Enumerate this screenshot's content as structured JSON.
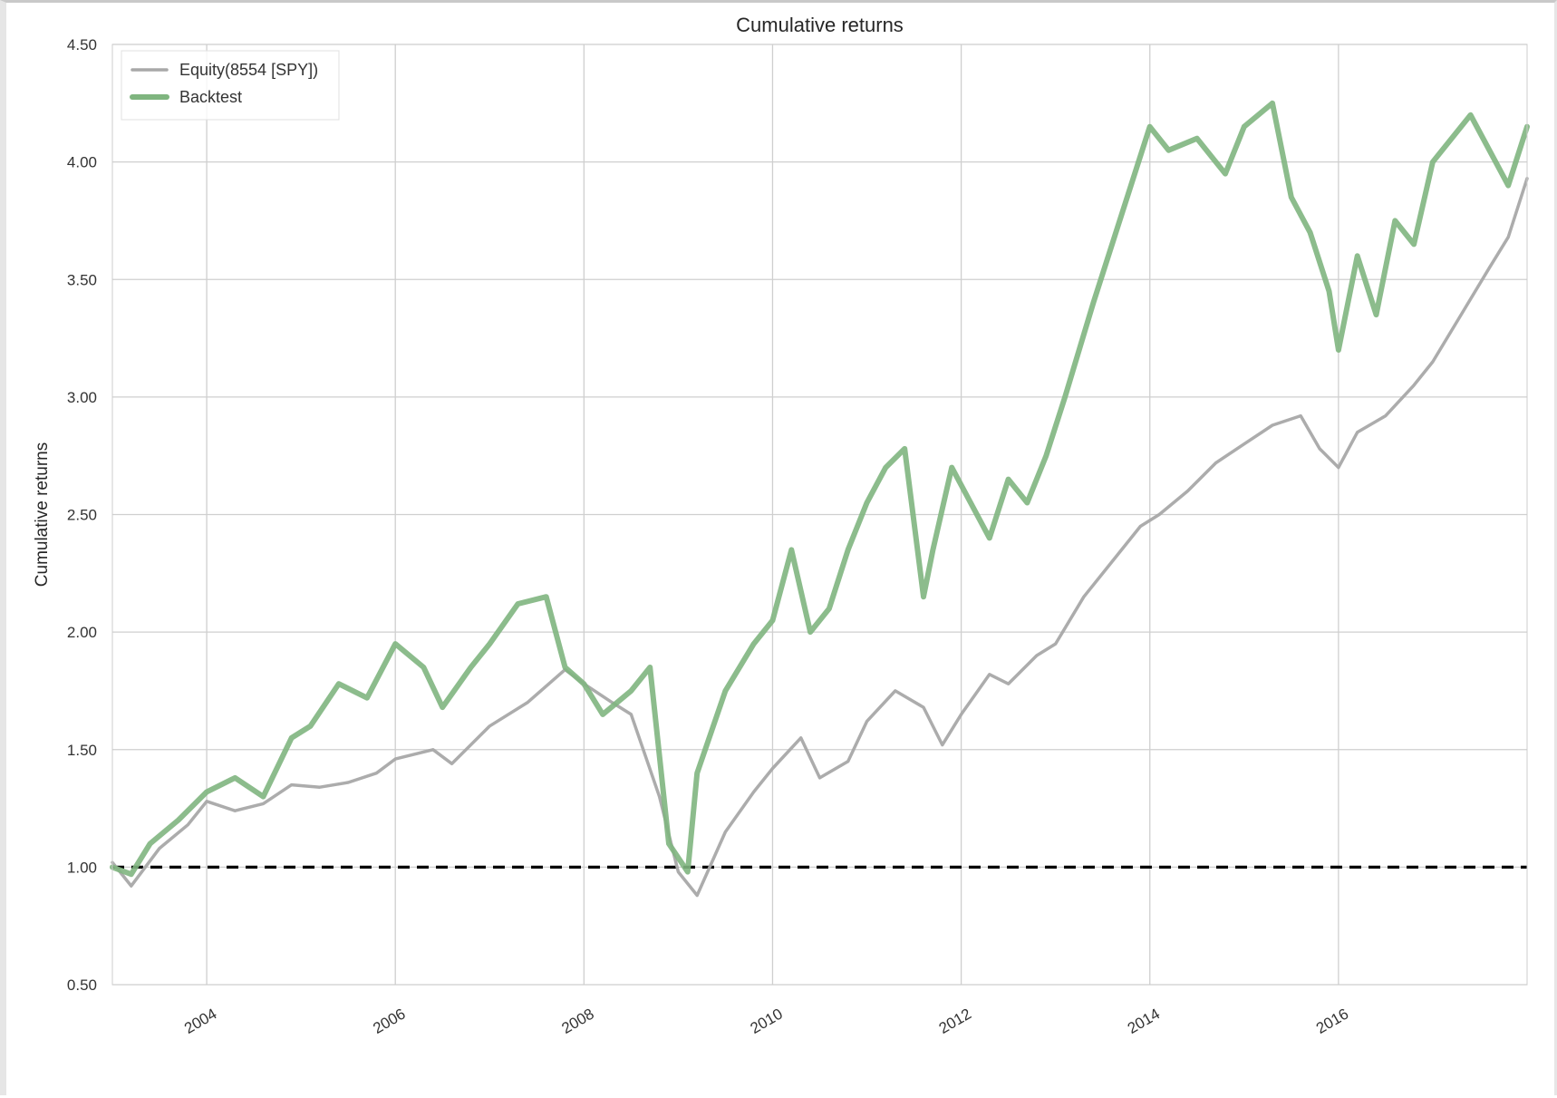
{
  "chart_data": {
    "type": "line",
    "title": "Cumulative returns",
    "xlabel": "",
    "ylabel": "Cumulative returns",
    "xlim": [
      2003.0,
      2018.0
    ],
    "ylim": [
      0.5,
      4.5
    ],
    "x_ticks": [
      2004,
      2006,
      2008,
      2010,
      2012,
      2014,
      2016
    ],
    "x_tick_labels": [
      "2004",
      "2006",
      "2008",
      "2010",
      "2012",
      "2014",
      "2016"
    ],
    "y_ticks": [
      0.5,
      1.0,
      1.5,
      2.0,
      2.5,
      3.0,
      3.5,
      4.0,
      4.5
    ],
    "y_tick_labels": [
      "0.50",
      "1.00",
      "1.50",
      "2.00",
      "2.50",
      "3.00",
      "3.50",
      "4.00",
      "4.50"
    ],
    "grid": true,
    "legend_position": "top-left",
    "reference_line": {
      "y": 1.0,
      "style": "dashed",
      "color": "#000000"
    },
    "series": [
      {
        "name": "Equity(8554 [SPY])",
        "color": "#a8a8a8",
        "x": [
          2003.0,
          2003.2,
          2003.5,
          2003.8,
          2004.0,
          2004.3,
          2004.6,
          2004.9,
          2005.2,
          2005.5,
          2005.8,
          2006.0,
          2006.4,
          2006.6,
          2007.0,
          2007.4,
          2007.8,
          2008.0,
          2008.3,
          2008.5,
          2008.8,
          2009.0,
          2009.2,
          2009.5,
          2009.8,
          2010.0,
          2010.3,
          2010.5,
          2010.8,
          2011.0,
          2011.3,
          2011.6,
          2011.8,
          2012.0,
          2012.3,
          2012.5,
          2012.8,
          2013.0,
          2013.3,
          2013.6,
          2013.9,
          2014.1,
          2014.4,
          2014.7,
          2015.0,
          2015.3,
          2015.6,
          2015.8,
          2016.0,
          2016.2,
          2016.5,
          2016.8,
          2017.0,
          2017.3,
          2017.6,
          2017.8,
          2018.0
        ],
        "y": [
          1.02,
          0.92,
          1.08,
          1.18,
          1.28,
          1.24,
          1.27,
          1.35,
          1.34,
          1.36,
          1.4,
          1.46,
          1.5,
          1.44,
          1.6,
          1.7,
          1.84,
          1.78,
          1.7,
          1.65,
          1.3,
          0.98,
          0.88,
          1.15,
          1.32,
          1.42,
          1.55,
          1.38,
          1.45,
          1.62,
          1.75,
          1.68,
          1.52,
          1.65,
          1.82,
          1.78,
          1.9,
          1.95,
          2.15,
          2.3,
          2.45,
          2.5,
          2.6,
          2.72,
          2.8,
          2.88,
          2.92,
          2.78,
          2.7,
          2.85,
          2.92,
          3.05,
          3.15,
          3.35,
          3.55,
          3.68,
          3.93
        ]
      },
      {
        "name": "Backtest",
        "color": "#7fb57f",
        "x": [
          2003.0,
          2003.2,
          2003.4,
          2003.7,
          2004.0,
          2004.3,
          2004.6,
          2004.9,
          2005.1,
          2005.4,
          2005.7,
          2006.0,
          2006.3,
          2006.5,
          2006.8,
          2007.0,
          2007.3,
          2007.6,
          2007.8,
          2008.0,
          2008.2,
          2008.5,
          2008.7,
          2008.9,
          2009.1,
          2009.2,
          2009.5,
          2009.8,
          2010.0,
          2010.2,
          2010.4,
          2010.6,
          2010.8,
          2011.0,
          2011.2,
          2011.4,
          2011.6,
          2011.7,
          2011.9,
          2012.1,
          2012.3,
          2012.5,
          2012.7,
          2012.9,
          2013.1,
          2013.4,
          2013.6,
          2013.8,
          2014.0,
          2014.2,
          2014.5,
          2014.8,
          2015.0,
          2015.3,
          2015.5,
          2015.7,
          2015.9,
          2016.0,
          2016.2,
          2016.4,
          2016.6,
          2016.8,
          2017.0,
          2017.2,
          2017.4,
          2017.6,
          2017.8,
          2018.0
        ],
        "y": [
          1.0,
          0.97,
          1.1,
          1.2,
          1.32,
          1.38,
          1.3,
          1.55,
          1.6,
          1.78,
          1.72,
          1.95,
          1.85,
          1.68,
          1.85,
          1.95,
          2.12,
          2.15,
          1.85,
          1.78,
          1.65,
          1.75,
          1.85,
          1.1,
          0.98,
          1.4,
          1.75,
          1.95,
          2.05,
          2.35,
          2.0,
          2.1,
          2.35,
          2.55,
          2.7,
          2.78,
          2.15,
          2.35,
          2.7,
          2.55,
          2.4,
          2.65,
          2.55,
          2.75,
          3.0,
          3.4,
          3.65,
          3.9,
          4.15,
          4.05,
          4.1,
          3.95,
          4.15,
          4.25,
          3.85,
          3.7,
          3.45,
          3.2,
          3.6,
          3.35,
          3.75,
          3.65,
          4.0,
          4.1,
          4.2,
          4.05,
          3.9,
          4.15
        ]
      }
    ]
  }
}
